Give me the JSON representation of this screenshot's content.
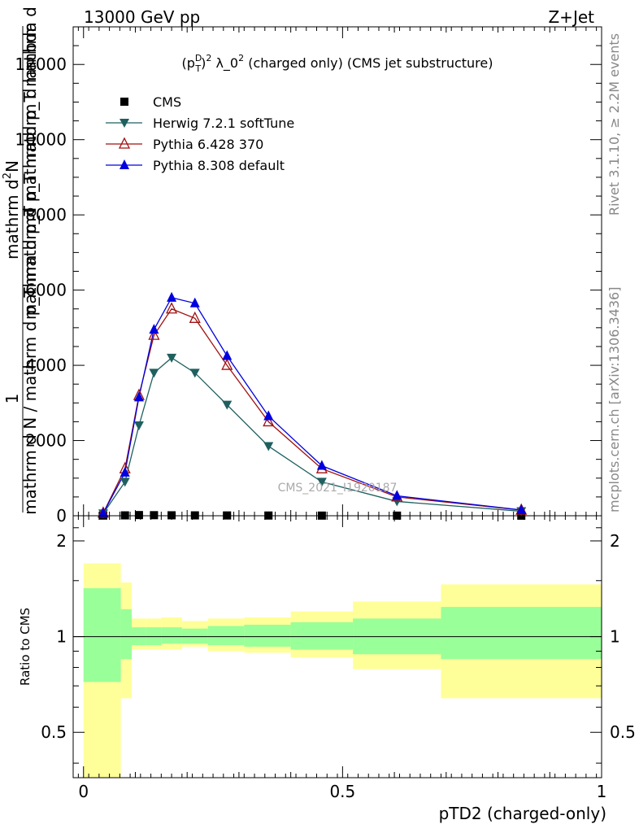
{
  "header": {
    "left": "13000 GeV pp",
    "right": "Z+Jet"
  },
  "side_labels": {
    "rivet": "Rivet 3.1.10, ≥ 2.2M events",
    "mcplots": "mcplots.cern.ch [arXiv:1306.3436]"
  },
  "main_plot": {
    "title": "(p_T^D)^2 λ_0^2 (charged only) (CMS jet substructure)",
    "title_parts": {
      "pre": "(p",
      "sup1": "D",
      "sub1": "T",
      "mid": ")",
      "sup2": "2",
      "lambda": " λ_0",
      "sup3": "2",
      "post": " (charged only) (CMS jet substructure)"
    },
    "ylabel": {
      "numerator": "1",
      "denominator": "mathrm d N / mathrm d p_T mathrmd p_T mathrm d lambda",
      "top_main": "mathrm d",
      "top_sup": "2",
      "top_rest": "N",
      "bottom": "mathrm d p_T mathrmd p_T mathrm d lambda",
      "bottom_full": "mathrm d N / mathrm d p_T mathrmd p_T mathrm d lambda"
    },
    "watermark": "CMS_2021_I1920187",
    "yticks": [
      "0",
      "2000",
      "4000",
      "6000",
      "8000",
      "10000",
      "12000"
    ]
  },
  "ratio_plot": {
    "ylabel": "Ratio to CMS",
    "yticks": [
      "0.5",
      "1",
      "2"
    ]
  },
  "xaxis": {
    "label": "pTD2 (charged-only)",
    "ticks": [
      "0",
      "0.5",
      "1"
    ]
  },
  "legend": [
    {
      "label": "CMS",
      "marker": "square",
      "color": "#000000"
    },
    {
      "label": "Herwig 7.2.1 softTune",
      "marker": "triangle-down",
      "color": "#1f5f5f"
    },
    {
      "label": "Pythia 6.428 370",
      "marker": "triangle-up-open",
      "color": "#a01010"
    },
    {
      "label": "Pythia 8.308 default",
      "marker": "triangle-up",
      "color": "#0000e0"
    }
  ],
  "chart_data": {
    "type": "line",
    "xlim": [
      -0.02,
      1.0
    ],
    "ylim": [
      0,
      13000
    ],
    "x": [
      0.038,
      0.08,
      0.107,
      0.136,
      0.17,
      0.215,
      0.277,
      0.357,
      0.46,
      0.605,
      0.845
    ],
    "x_bins": [
      0.0,
      0.072,
      0.093,
      0.12,
      0.15,
      0.19,
      0.24,
      0.31,
      0.4,
      0.52,
      0.69,
      1.0
    ],
    "series": [
      {
        "name": "CMS",
        "values": [
          5,
          10,
          18,
          15,
          12,
          10,
          8,
          6,
          4,
          3,
          2
        ]
      },
      {
        "name": "Herwig 7.2.1 softTune",
        "values": [
          60,
          900,
          2400,
          3800,
          4200,
          3800,
          2950,
          1850,
          900,
          380,
          120
        ]
      },
      {
        "name": "Pythia 6.428 370",
        "values": [
          70,
          1250,
          3200,
          4800,
          5500,
          5250,
          4000,
          2500,
          1250,
          500,
          150
        ]
      },
      {
        "name": "Pythia 8.308 default",
        "values": [
          70,
          1150,
          3150,
          4950,
          5800,
          5650,
          4250,
          2650,
          1330,
          530,
          155
        ]
      }
    ],
    "ratio": {
      "ylim_log": [
        0.36,
        2.4
      ],
      "green_band": [
        [
          0.72,
          1.42
        ],
        [
          0.85,
          1.22
        ],
        [
          0.94,
          1.07
        ],
        [
          0.94,
          1.07
        ],
        [
          0.95,
          1.07
        ],
        [
          0.95,
          1.06
        ],
        [
          0.94,
          1.08
        ],
        [
          0.93,
          1.09
        ],
        [
          0.91,
          1.11
        ],
        [
          0.88,
          1.14
        ],
        [
          0.85,
          1.24
        ]
      ],
      "yellow_band": [
        [
          0.3,
          1.7
        ],
        [
          0.64,
          1.48
        ],
        [
          0.91,
          1.14
        ],
        [
          0.91,
          1.14
        ],
        [
          0.91,
          1.15
        ],
        [
          0.93,
          1.12
        ],
        [
          0.9,
          1.14
        ],
        [
          0.89,
          1.15
        ],
        [
          0.86,
          1.2
        ],
        [
          0.79,
          1.29
        ],
        [
          0.64,
          1.46
        ]
      ]
    }
  }
}
